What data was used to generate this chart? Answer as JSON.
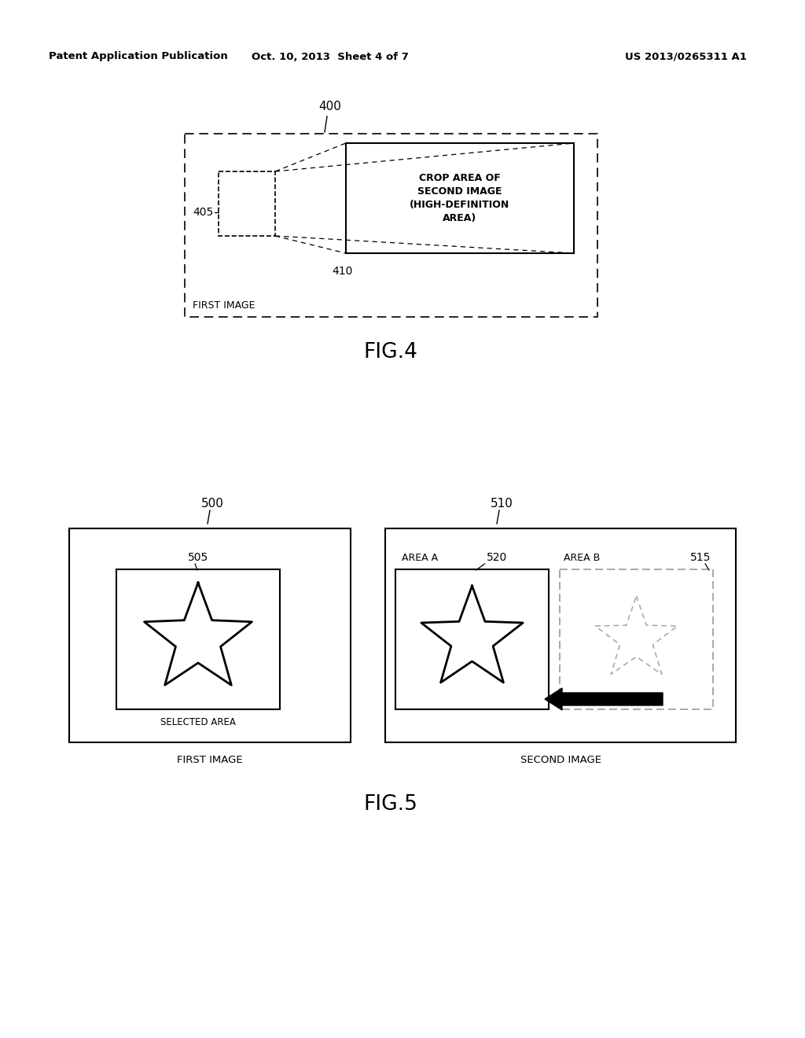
{
  "bg_color": "#ffffff",
  "header_left": "Patent Application Publication",
  "header_mid": "Oct. 10, 2013  Sheet 4 of 7",
  "header_right": "US 2013/0265311 A1",
  "fig4_label": "400",
  "fig4_sublabel_405": "405",
  "fig4_sublabel_410": "410",
  "fig4_caption": "FIRST IMAGE",
  "fig4_box_text": "CROP AREA OF\nSECOND IMAGE\n(HIGH-DEFINITION\nAREA)",
  "fig4_title": "FIG.4",
  "fig5_label_500": "500",
  "fig5_label_510": "510",
  "fig5_label_505": "505",
  "fig5_label_520": "520",
  "fig5_label_515": "515",
  "fig5_area_a": "AREA A",
  "fig5_area_b": "AREA B",
  "fig5_selected": "SELECTED AREA",
  "fig5_first": "FIRST IMAGE",
  "fig5_second": "SECOND IMAGE",
  "fig5_title": "FIG.5",
  "line_color": "#000000",
  "gray_color": "#aaaaaa"
}
